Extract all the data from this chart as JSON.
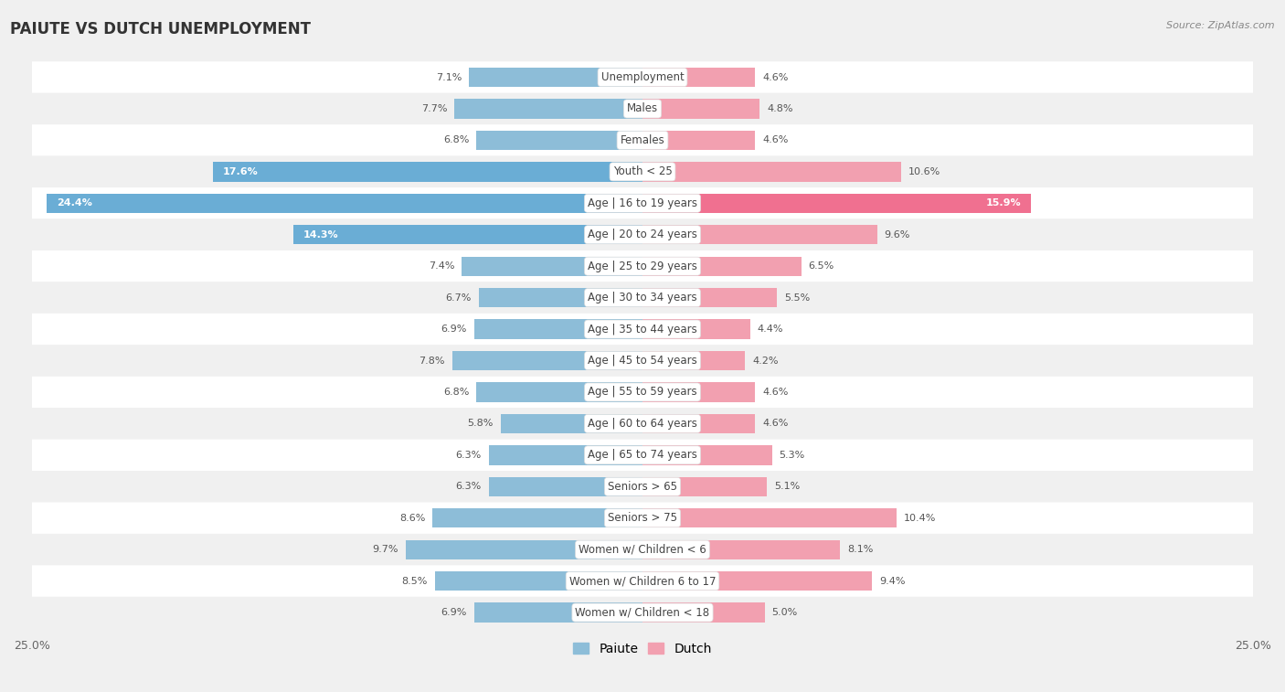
{
  "title": "PAIUTE VS DUTCH UNEMPLOYMENT",
  "source": "Source: ZipAtlas.com",
  "categories": [
    "Unemployment",
    "Males",
    "Females",
    "Youth < 25",
    "Age | 16 to 19 years",
    "Age | 20 to 24 years",
    "Age | 25 to 29 years",
    "Age | 30 to 34 years",
    "Age | 35 to 44 years",
    "Age | 45 to 54 years",
    "Age | 55 to 59 years",
    "Age | 60 to 64 years",
    "Age | 65 to 74 years",
    "Seniors > 65",
    "Seniors > 75",
    "Women w/ Children < 6",
    "Women w/ Children 6 to 17",
    "Women w/ Children < 18"
  ],
  "paiute_values": [
    7.1,
    7.7,
    6.8,
    17.6,
    24.4,
    14.3,
    7.4,
    6.7,
    6.9,
    7.8,
    6.8,
    5.8,
    6.3,
    6.3,
    8.6,
    9.7,
    8.5,
    6.9
  ],
  "dutch_values": [
    4.6,
    4.8,
    4.6,
    10.6,
    15.9,
    9.6,
    6.5,
    5.5,
    4.4,
    4.2,
    4.6,
    4.6,
    5.3,
    5.1,
    10.4,
    8.1,
    9.4,
    5.0
  ],
  "paiute_color_normal": "#8dbdd8",
  "paiute_color_large": "#6aadd5",
  "dutch_color_normal": "#f2a0b0",
  "dutch_color_large": "#f07090",
  "axis_max": 25.0,
  "bg_color": "#f0f0f0",
  "row_color_odd": "#ffffff",
  "row_color_even": "#f0f0f0",
  "label_bg": "#ffffff",
  "legend_paiute": "Paiute",
  "legend_dutch": "Dutch",
  "value_label_threshold": 12.0
}
